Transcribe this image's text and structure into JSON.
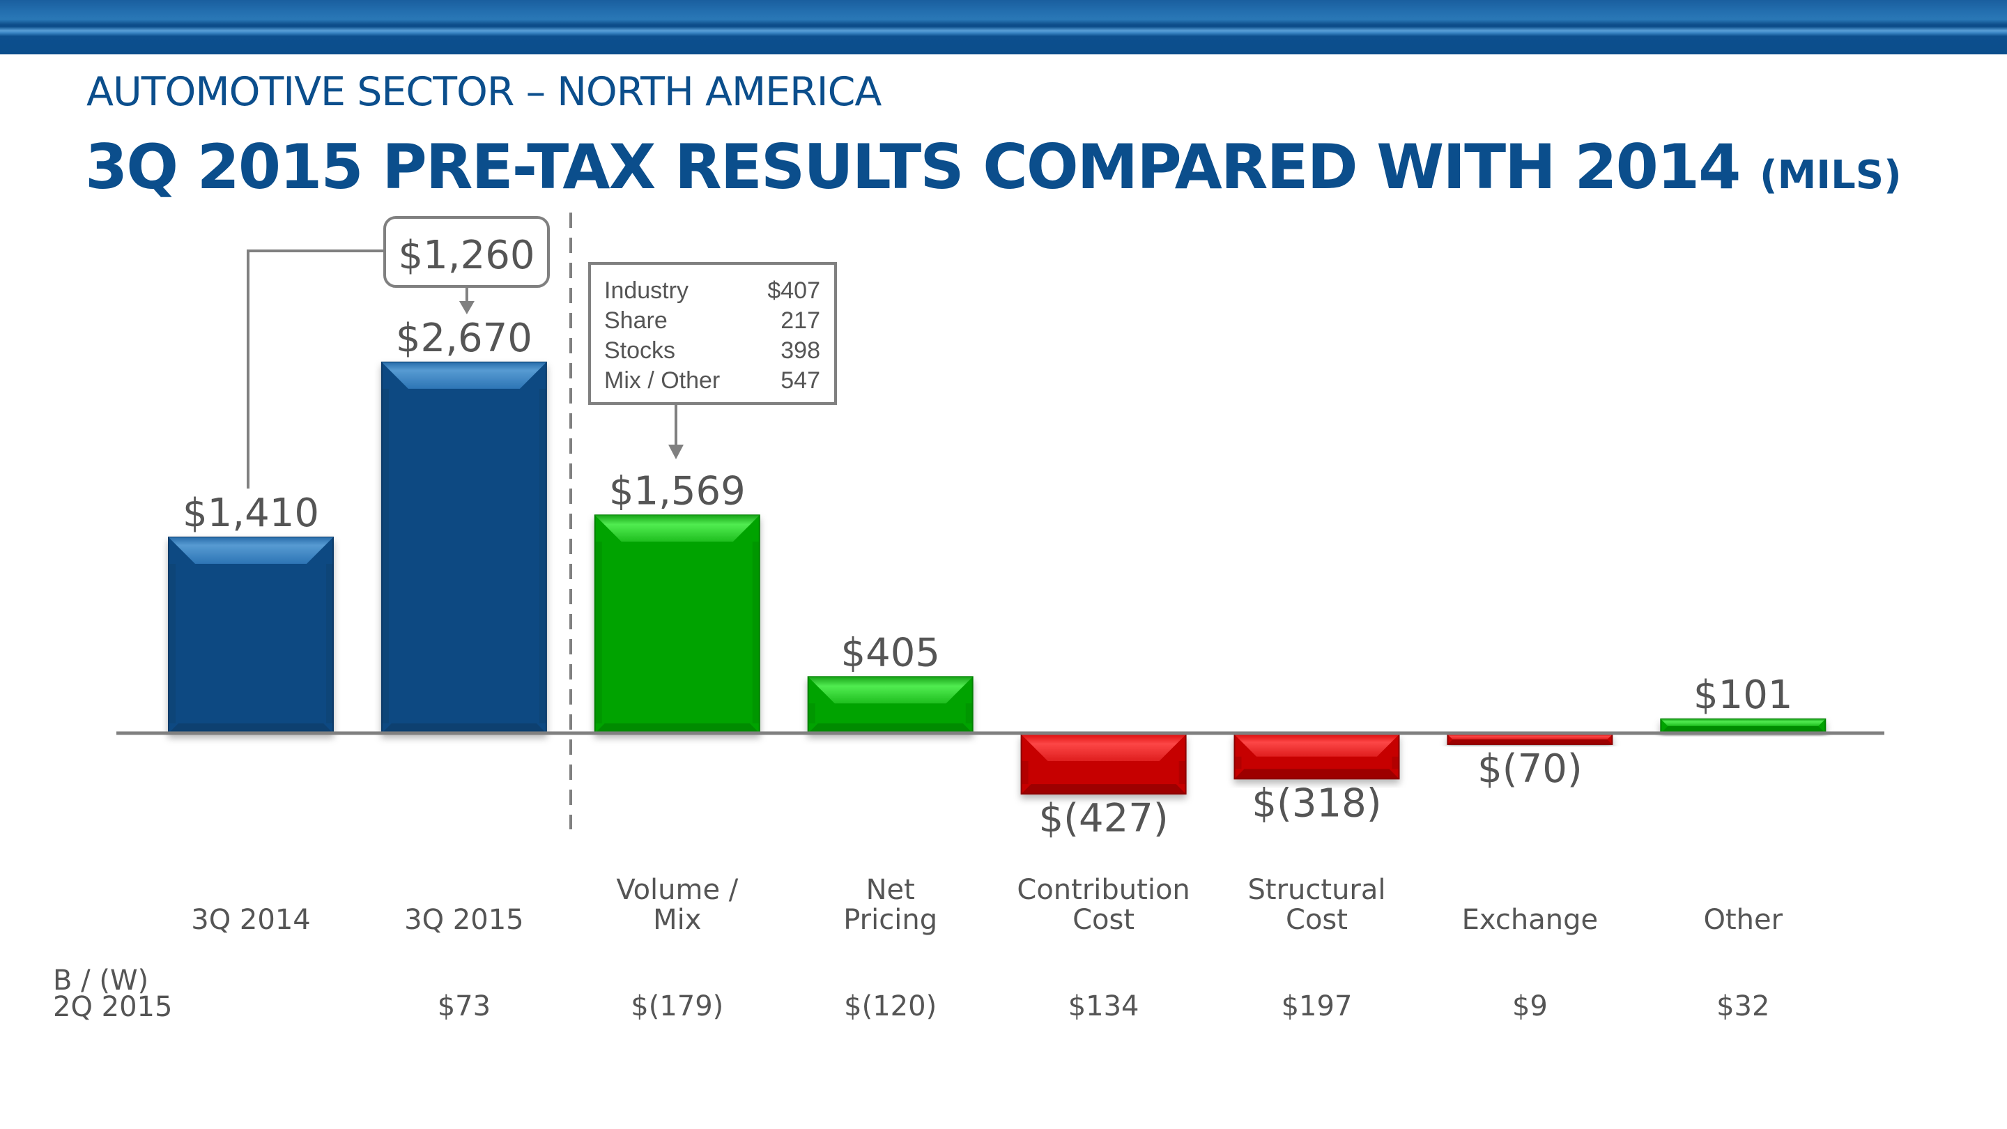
{
  "header": {
    "subtitle": "AUTOMOTIVE SECTOR – NORTH AMERICA",
    "title": "3Q 2015 PRE-TAX RESULTS COMPARED WITH 2014",
    "units": "(MILS)"
  },
  "colors": {
    "brand_blue": "#0b4e8c",
    "bar_blue": "#0d4a80",
    "bar_green": "#05a005",
    "bar_red": "#c80000",
    "text_gray": "#555555",
    "line_gray": "#808080"
  },
  "chart_data": {
    "type": "bar",
    "subtype": "waterfall-variance",
    "title": "3Q 2015 PRE-TAX RESULTS COMPARED WITH 2014 (MILS)",
    "xlabel": "",
    "ylabel": "",
    "grid": false,
    "categories": [
      "3Q 2014",
      "3Q 2015",
      "Volume / Mix",
      "Net Pricing",
      "Contribution Cost",
      "Structural Cost",
      "Exchange",
      "Other"
    ],
    "category_lines": [
      [
        "",
        "3Q 2014"
      ],
      [
        "",
        "3Q 2015"
      ],
      [
        "Volume /",
        "Mix"
      ],
      [
        "Net",
        "Pricing"
      ],
      [
        "Contribution",
        "Cost"
      ],
      [
        "Structural",
        "Cost"
      ],
      [
        "",
        "Exchange"
      ],
      [
        "",
        "Other"
      ]
    ],
    "values": [
      1410,
      2670,
      1569,
      405,
      -427,
      -318,
      -70,
      101
    ],
    "value_labels": [
      "$1,410",
      "$2,670",
      "$1,569",
      "$405",
      "$(427)",
      "$(318)",
      "$(70)",
      "$101"
    ],
    "bar_kinds": [
      "total",
      "total",
      "positive",
      "positive",
      "negative",
      "negative",
      "negative",
      "positive"
    ],
    "change_callout": {
      "label": "$1,260",
      "from": "3Q 2014",
      "to": "3Q 2015"
    },
    "detail_callout": {
      "target": "Volume / Mix",
      "rows": [
        {
          "label": "Industry",
          "value": "$407"
        },
        {
          "label": "Share",
          "value": "217"
        },
        {
          "label": "Stocks",
          "value": "398"
        },
        {
          "label": "Mix / Other",
          "value": "547"
        }
      ]
    },
    "comparison_row": {
      "label_line1": "B / (W)",
      "label_line2": "2Q 2015",
      "values": [
        "",
        "$73",
        "$(179)",
        "$(120)",
        "$134",
        "$197",
        "$9",
        "$32"
      ]
    }
  }
}
